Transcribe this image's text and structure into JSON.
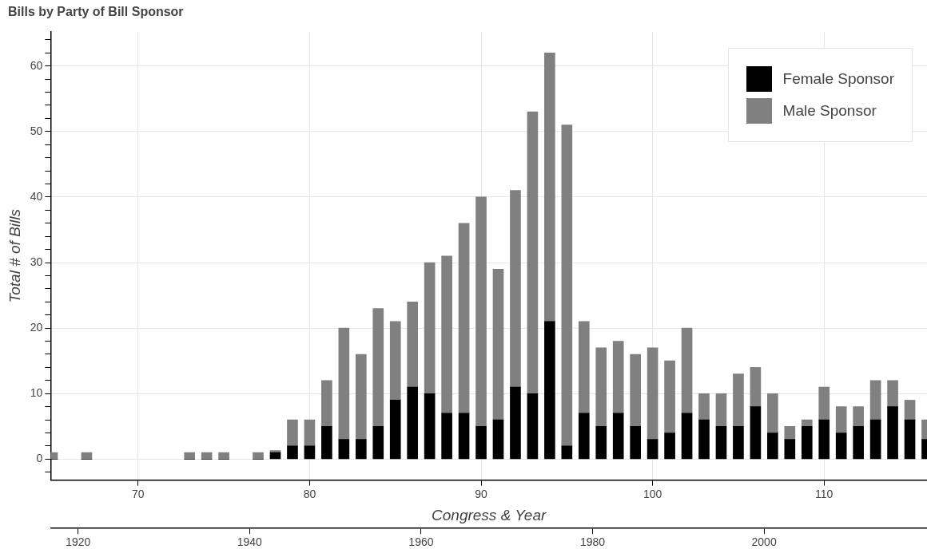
{
  "chart_data": {
    "type": "bar",
    "title": "Bills by Party of Bill Sponsor",
    "xlabel": "Congress & Year",
    "ylabel": "Total # of Bills",
    "stacked": true,
    "x": [
      65,
      67,
      73,
      74,
      75,
      77,
      78,
      79,
      80,
      81,
      82,
      83,
      84,
      85,
      86,
      87,
      88,
      89,
      90,
      91,
      92,
      93,
      94,
      95,
      96,
      97,
      98,
      99,
      100,
      101,
      102,
      103,
      104,
      105,
      106,
      107,
      108,
      109,
      110,
      111,
      112,
      113,
      114,
      115,
      116
    ],
    "series": [
      {
        "name": "Female Sponsor",
        "color": "#000000",
        "values": [
          0,
          0,
          0,
          0,
          0,
          0,
          1,
          2,
          2,
          5,
          3,
          3,
          5,
          9,
          11,
          10,
          7,
          7,
          5,
          6,
          11,
          10,
          21,
          2,
          7,
          5,
          7,
          5,
          3,
          4,
          7,
          6,
          5,
          5,
          8,
          4,
          3,
          5,
          6,
          4,
          5,
          6,
          8,
          6,
          3
        ]
      },
      {
        "name": "Male Sponsor",
        "color": "#808080",
        "values": [
          1,
          1,
          1,
          1,
          1,
          1,
          0.3,
          4,
          4,
          7,
          17,
          13,
          18,
          12,
          13,
          20,
          24,
          29,
          35,
          23,
          30,
          43,
          41,
          49,
          14,
          12,
          11,
          11,
          14,
          11,
          13,
          4,
          5,
          8,
          6,
          6,
          2,
          1,
          5,
          4,
          3,
          6,
          4,
          3,
          3
        ]
      }
    ],
    "xlim": [
      64.9,
      116
    ],
    "xticks": [
      70,
      80,
      90,
      100,
      110
    ],
    "x2lim": [
      1916.8,
      2019
    ],
    "x2ticks": [
      1920,
      1940,
      1960,
      1980,
      2000
    ],
    "ylim": [
      -3.2,
      65.2
    ],
    "yticks": [
      {
        "value": -2,
        "label": null
      },
      0,
      {
        "value": 2,
        "label": null
      },
      {
        "value": 4,
        "label": null
      },
      {
        "value": 6,
        "label": null
      },
      {
        "value": 8,
        "label": null
      },
      10,
      {
        "value": 12,
        "label": null
      },
      {
        "value": 14,
        "label": null
      },
      {
        "value": 16,
        "label": null
      },
      {
        "value": 18,
        "label": null
      },
      20,
      {
        "value": 22,
        "label": null
      },
      {
        "value": 24,
        "label": null
      },
      {
        "value": 26,
        "label": null
      },
      {
        "value": 28,
        "label": null
      },
      30,
      {
        "value": 32,
        "label": null
      },
      {
        "value": 34,
        "label": null
      },
      {
        "value": 36,
        "label": null
      },
      {
        "value": 38,
        "label": null
      },
      40,
      {
        "value": 42,
        "label": null
      },
      {
        "value": 44,
        "label": null
      },
      {
        "value": 46,
        "label": null
      },
      {
        "value": 48,
        "label": null
      },
      50,
      {
        "value": 52,
        "label": null
      },
      {
        "value": 54,
        "label": null
      },
      {
        "value": 56,
        "label": null
      },
      {
        "value": 58,
        "label": null
      },
      60,
      {
        "value": 62,
        "label": null
      },
      {
        "value": 64,
        "label": null
      }
    ],
    "grid": true,
    "legend": "top right"
  }
}
